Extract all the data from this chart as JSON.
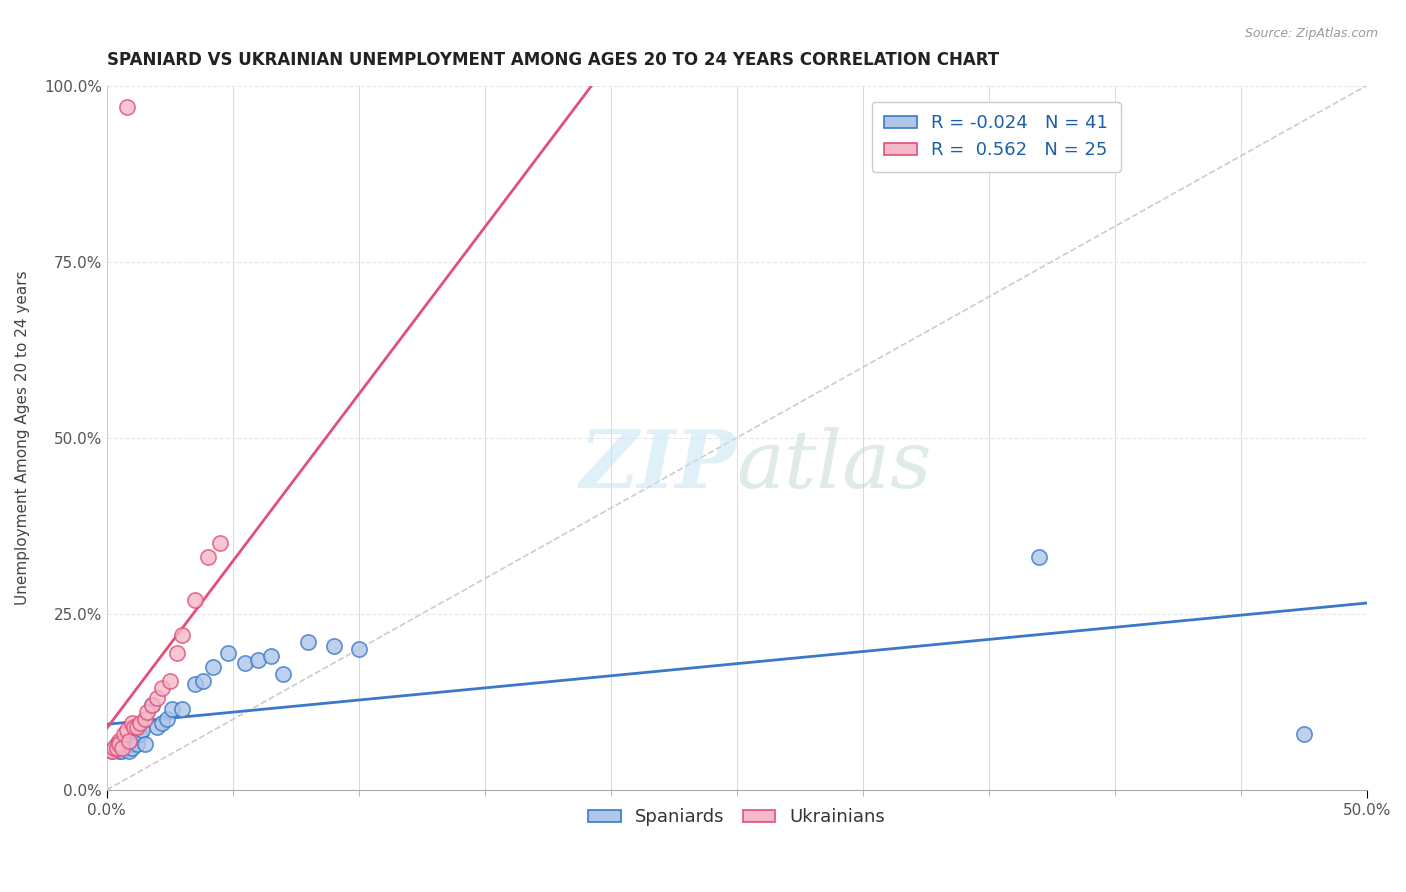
{
  "title": "SPANIARD VS UKRAINIAN UNEMPLOYMENT AMONG AGES 20 TO 24 YEARS CORRELATION CHART",
  "source_text": "Source: ZipAtlas.com",
  "ylabel": "Unemployment Among Ages 20 to 24 years",
  "xlim": [
    0.0,
    0.5
  ],
  "ylim": [
    0.0,
    1.0
  ],
  "xticks": [
    0.0,
    0.5
  ],
  "yticks": [
    0.0,
    0.25,
    0.5,
    0.75,
    1.0
  ],
  "xtick_labels": [
    "0.0%",
    "50.0%"
  ],
  "ytick_labels": [
    "0.0%",
    "25.0%",
    "50.0%",
    "75.0%",
    "100.0%"
  ],
  "spaniard_color": "#aec6e8",
  "ukrainian_color": "#f4b8c8",
  "spaniard_line_color": "#3a78c9",
  "ukrainian_line_color": "#e0507a",
  "diagonal_color": "#cccccc",
  "R_spaniard": -0.024,
  "N_spaniard": 41,
  "R_ukrainian": 0.562,
  "N_ukrainian": 25,
  "spaniard_x": [
    0.002,
    0.003,
    0.004,
    0.004,
    0.005,
    0.005,
    0.006,
    0.006,
    0.007,
    0.007,
    0.008,
    0.008,
    0.009,
    0.009,
    0.01,
    0.01,
    0.01,
    0.011,
    0.012,
    0.013,
    0.014,
    0.015,
    0.018,
    0.02,
    0.022,
    0.024,
    0.026,
    0.03,
    0.035,
    0.038,
    0.042,
    0.048,
    0.055,
    0.06,
    0.065,
    0.07,
    0.08,
    0.09,
    0.1,
    0.37,
    0.475
  ],
  "spaniard_y": [
    0.055,
    0.06,
    0.065,
    0.06,
    0.06,
    0.055,
    0.06,
    0.055,
    0.065,
    0.06,
    0.065,
    0.06,
    0.06,
    0.055,
    0.065,
    0.07,
    0.06,
    0.075,
    0.065,
    0.08,
    0.085,
    0.065,
    0.12,
    0.09,
    0.095,
    0.1,
    0.115,
    0.115,
    0.15,
    0.155,
    0.175,
    0.195,
    0.18,
    0.185,
    0.19,
    0.165,
    0.21,
    0.205,
    0.2,
    0.33,
    0.08
  ],
  "ukrainian_x": [
    0.002,
    0.003,
    0.004,
    0.005,
    0.005,
    0.006,
    0.007,
    0.008,
    0.009,
    0.01,
    0.011,
    0.012,
    0.013,
    0.015,
    0.016,
    0.018,
    0.02,
    0.022,
    0.025,
    0.028,
    0.03,
    0.035,
    0.04,
    0.045,
    0.008
  ],
  "ukrainian_y": [
    0.055,
    0.06,
    0.06,
    0.07,
    0.065,
    0.06,
    0.08,
    0.085,
    0.07,
    0.095,
    0.09,
    0.09,
    0.095,
    0.1,
    0.11,
    0.12,
    0.13,
    0.145,
    0.155,
    0.195,
    0.22,
    0.27,
    0.33,
    0.35,
    0.97
  ],
  "watermark_zip": "ZIP",
  "watermark_atlas": "atlas",
  "background_color": "#ffffff",
  "grid_color": "#e8e8e8",
  "grid_dashes": [
    4,
    4
  ],
  "title_fontsize": 12,
  "axis_label_fontsize": 11,
  "tick_fontsize": 11,
  "legend_fontsize": 13
}
